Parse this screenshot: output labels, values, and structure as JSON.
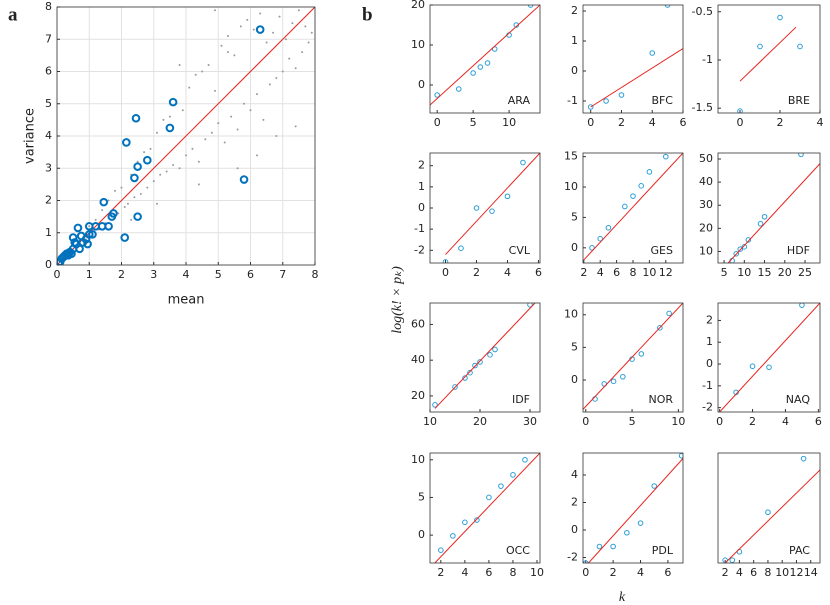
{
  "panel_b": {
    "label": "b",
    "x_label": "k",
    "y_label": "log(k! × pₖ)"
  },
  "chart_data": [
    {
      "type": "scatter",
      "panel_label": "a",
      "x_label": "mean",
      "y_label": "variance",
      "grid": true,
      "xlim": [
        0,
        8
      ],
      "ylim": [
        0,
        8
      ],
      "xticks": [
        0,
        1,
        2,
        3,
        4,
        5,
        6,
        7,
        8
      ],
      "yticks": [
        0,
        1,
        2,
        3,
        4,
        5,
        6,
        7,
        8
      ],
      "series": [
        {
          "mark": "dot",
          "color": "#9a9a9a",
          "x": [
            0.3,
            0.5,
            0.6,
            0.8,
            0.9,
            1.0,
            1.1,
            1.2,
            1.3,
            1.4,
            1.5,
            1.6,
            1.7,
            1.8,
            1.9,
            2.0,
            2.1,
            2.2,
            2.3,
            2.4,
            2.5,
            2.6,
            2.7,
            2.8,
            2.9,
            3.0,
            3.1,
            3.2,
            3.3,
            3.4,
            3.5,
            3.6,
            3.7,
            3.8,
            3.9,
            4.0,
            4.1,
            4.2,
            4.3,
            4.4,
            4.5,
            4.6,
            4.7,
            4.8,
            4.9,
            5.0,
            5.1,
            5.2,
            5.3,
            5.4,
            5.5,
            5.6,
            5.7,
            5.8,
            5.9,
            6.0,
            6.1,
            6.2,
            6.3,
            6.4,
            6.5,
            6.6,
            6.7,
            6.8,
            6.9,
            7.0,
            7.1,
            7.2,
            7.3,
            7.4,
            7.5,
            7.6,
            7.7,
            7.8,
            7.9,
            2.3,
            3.1,
            4.4,
            5.6,
            6.2,
            6.8,
            7.4,
            4.9,
            5.3,
            3.8
          ],
          "values": [
            0.4,
            0.6,
            0.5,
            1.0,
            0.8,
            1.2,
            0.9,
            1.4,
            1.1,
            1.7,
            1.3,
            2.0,
            1.5,
            2.3,
            1.6,
            2.4,
            1.8,
            1.9,
            2.8,
            2.1,
            3.2,
            2.2,
            3.5,
            2.4,
            3.6,
            2.6,
            4.1,
            2.8,
            4.5,
            2.9,
            4.6,
            3.1,
            5.0,
            3.0,
            4.8,
            3.4,
            5.5,
            3.6,
            5.9,
            3.2,
            6.0,
            3.9,
            6.2,
            4.1,
            5.4,
            4.4,
            6.8,
            3.8,
            7.1,
            4.6,
            6.5,
            4.2,
            7.4,
            5.0,
            7.6,
            4.8,
            7.3,
            5.3,
            7.8,
            4.5,
            6.9,
            5.6,
            7.2,
            5.8,
            7.7,
            6.0,
            7.0,
            6.4,
            7.5,
            6.1,
            7.9,
            6.6,
            7.4,
            6.9,
            7.2,
            1.4,
            1.9,
            2.5,
            3.0,
            3.4,
            4.0,
            4.3,
            7.9,
            6.6,
            6.2
          ]
        },
        {
          "mark": "line",
          "color": "#e8231e",
          "x": [
            0,
            8
          ],
          "values": [
            0,
            8
          ]
        },
        {
          "mark": "ring",
          "color": "#0072bd",
          "x": [
            0.05,
            0.1,
            0.15,
            0.2,
            0.25,
            0.3,
            0.35,
            0.4,
            0.45,
            0.5,
            0.5,
            0.55,
            0.6,
            0.65,
            0.7,
            0.75,
            0.8,
            0.9,
            0.95,
            1.0,
            1.0,
            1.1,
            1.2,
            1.4,
            1.45,
            1.6,
            1.7,
            1.75,
            2.1,
            2.15,
            2.4,
            2.45,
            2.5,
            2.5,
            2.8,
            3.5,
            3.6,
            5.8,
            6.3
          ],
          "values": [
            0.05,
            0.1,
            0.2,
            0.25,
            0.3,
            0.35,
            0.3,
            0.4,
            0.35,
            0.5,
            0.85,
            0.7,
            0.65,
            1.15,
            0.5,
            0.9,
            0.7,
            0.8,
            0.65,
            1.2,
            0.95,
            0.95,
            1.2,
            1.2,
            1.95,
            1.2,
            1.5,
            1.6,
            0.85,
            3.8,
            2.7,
            4.55,
            1.5,
            3.05,
            3.25,
            4.25,
            5.05,
            2.65,
            7.3
          ]
        }
      ]
    },
    {
      "type": "scatter",
      "title": "ARA",
      "xlim": [
        -1,
        14.3
      ],
      "ylim": [
        -7,
        20
      ],
      "xticks": [
        0,
        5,
        10
      ],
      "yticks": [
        0,
        10,
        20
      ],
      "series": [
        {
          "mark": "circle",
          "color": "#2a9fd8",
          "x": [
            0,
            3,
            5,
            6,
            7,
            8,
            10,
            11,
            13
          ],
          "values": [
            -2.5,
            -1,
            3,
            4.5,
            5.5,
            9,
            12.5,
            15,
            20
          ]
        },
        {
          "mark": "line",
          "color": "#e8231e",
          "x": [
            -1,
            14.3
          ],
          "values": [
            -5,
            20
          ]
        }
      ]
    },
    {
      "type": "scatter",
      "title": "BFC",
      "xlim": [
        -0.5,
        6
      ],
      "ylim": [
        -1.4,
        2.2
      ],
      "xticks": [
        0,
        2,
        4,
        6
      ],
      "yticks": [
        -1,
        0,
        1,
        2
      ],
      "series": [
        {
          "mark": "circle",
          "color": "#2a9fd8",
          "x": [
            0,
            1,
            2,
            4,
            5
          ],
          "values": [
            -1.2,
            -1,
            -0.8,
            0.6,
            2.2
          ]
        },
        {
          "mark": "line",
          "color": "#e8231e",
          "x": [
            0,
            6
          ],
          "values": [
            -1.2,
            0.75
          ]
        }
      ]
    },
    {
      "type": "scatter",
      "title": "BRE",
      "xlim": [
        -1.1,
        4
      ],
      "ylim": [
        -1.55,
        -0.43
      ],
      "xticks": [
        0,
        2,
        4
      ],
      "yticks": [
        -1.5,
        -1,
        -0.5
      ],
      "series": [
        {
          "mark": "circle",
          "color": "#2a9fd8",
          "x": [
            0,
            1,
            2,
            3
          ],
          "values": [
            -1.53,
            -0.86,
            -0.56,
            -0.86
          ]
        },
        {
          "mark": "line",
          "color": "#e8231e",
          "x": [
            0,
            2.8
          ],
          "values": [
            -1.22,
            -0.66
          ]
        }
      ]
    },
    {
      "type": "scatter",
      "title": "CVL",
      "xlim": [
        -1,
        6.1
      ],
      "ylim": [
        -2.6,
        2.6
      ],
      "xticks": [
        0,
        2,
        4,
        6
      ],
      "yticks": [
        -2,
        -1,
        0,
        1,
        2
      ],
      "series": [
        {
          "mark": "circle",
          "color": "#2a9fd8",
          "x": [
            0,
            1,
            2,
            3,
            4,
            5
          ],
          "values": [
            -2.55,
            -1.9,
            0,
            -0.15,
            0.55,
            2.15
          ]
        },
        {
          "mark": "line",
          "color": "#e8231e",
          "x": [
            0,
            6.1
          ],
          "values": [
            -2.2,
            2.6
          ]
        }
      ]
    },
    {
      "type": "scatter",
      "title": "GES",
      "xlim": [
        1.9,
        14.1
      ],
      "ylim": [
        -2.5,
        15.6
      ],
      "xticks": [
        2,
        4,
        6,
        8,
        10,
        12
      ],
      "yticks": [
        0,
        5,
        10,
        15
      ],
      "series": [
        {
          "mark": "circle",
          "color": "#2a9fd8",
          "x": [
            3,
            4,
            5,
            7,
            8,
            9,
            10,
            12
          ],
          "values": [
            0,
            1.5,
            3.3,
            6.8,
            8.5,
            10.2,
            12.5,
            15
          ]
        },
        {
          "mark": "line",
          "color": "#e8231e",
          "x": [
            2,
            14.1
          ],
          "values": [
            -2,
            15.6
          ]
        }
      ]
    },
    {
      "type": "scatter",
      "title": "HDF",
      "xlim": [
        3.5,
        28.7
      ],
      "ylim": [
        5,
        52.6
      ],
      "xticks": [
        5,
        10,
        15,
        20,
        25
      ],
      "yticks": [
        10,
        20,
        30,
        40,
        50
      ],
      "series": [
        {
          "mark": "circle",
          "color": "#2a9fd8",
          "x": [
            7,
            8,
            9,
            10,
            11,
            14,
            15,
            24
          ],
          "values": [
            6,
            9,
            11,
            12,
            15,
            22,
            25,
            52
          ]
        },
        {
          "mark": "line",
          "color": "#e8231e",
          "x": [
            6,
            28.7
          ],
          "values": [
            5,
            48
          ]
        }
      ]
    },
    {
      "type": "scatter",
      "title": "IDF",
      "xlim": [
        10,
        32
      ],
      "ylim": [
        11,
        72
      ],
      "xticks": [
        10,
        20,
        30
      ],
      "yticks": [
        20,
        40,
        60
      ],
      "series": [
        {
          "mark": "circle",
          "color": "#2a9fd8",
          "x": [
            11,
            15,
            17,
            18,
            19,
            20,
            22,
            23,
            30
          ],
          "values": [
            15,
            25,
            30,
            33,
            37,
            39,
            43,
            46,
            71
          ]
        },
        {
          "mark": "line",
          "color": "#e8231e",
          "x": [
            11,
            31
          ],
          "values": [
            13,
            72
          ]
        }
      ]
    },
    {
      "type": "scatter",
      "title": "NOR",
      "xlim": [
        -0.3,
        10.5
      ],
      "ylim": [
        -4.9,
        11.8
      ],
      "xticks": [
        0,
        5,
        10
      ],
      "yticks": [
        0,
        5,
        10
      ],
      "series": [
        {
          "mark": "circle",
          "color": "#2a9fd8",
          "x": [
            1,
            2,
            3,
            4,
            5,
            6,
            8,
            9
          ],
          "values": [
            -2.9,
            -0.6,
            -0.2,
            0.5,
            3.2,
            4,
            8,
            10.2
          ]
        },
        {
          "mark": "line",
          "color": "#e8231e",
          "x": [
            -0.3,
            10.5
          ],
          "values": [
            -4.5,
            11.8
          ]
        }
      ]
    },
    {
      "type": "scatter",
      "title": "NAQ",
      "xlim": [
        -0.1,
        6.1
      ],
      "ylim": [
        -2.2,
        2.8
      ],
      "xticks": [
        0,
        2,
        4,
        6
      ],
      "yticks": [
        -2,
        -1,
        0,
        1,
        2
      ],
      "series": [
        {
          "mark": "circle",
          "color": "#2a9fd8",
          "x": [
            1,
            2,
            3,
            5
          ],
          "values": [
            -1.3,
            -0.1,
            -0.15,
            2.7
          ]
        },
        {
          "mark": "line",
          "color": "#e8231e",
          "x": [
            0,
            6.1
          ],
          "values": [
            -2.2,
            2.8
          ]
        }
      ]
    },
    {
      "type": "scatter",
      "title": "OCC",
      "xlim": [
        1.1,
        10.25
      ],
      "ylim": [
        -3.7,
        10.9
      ],
      "xticks": [
        2,
        4,
        6,
        8,
        10
      ],
      "yticks": [
        0,
        5,
        10
      ],
      "series": [
        {
          "mark": "circle",
          "color": "#2a9fd8",
          "x": [
            2,
            3,
            4,
            5,
            6,
            7,
            8,
            9
          ],
          "values": [
            -2,
            -0.1,
            1.7,
            2,
            5,
            6.5,
            8,
            10
          ]
        },
        {
          "mark": "line",
          "color": "#e8231e",
          "x": [
            1.5,
            10.25
          ],
          "values": [
            -3.7,
            10.9
          ]
        }
      ]
    },
    {
      "type": "scatter",
      "title": "PDL",
      "xlim": [
        -0.2,
        7.1
      ],
      "ylim": [
        -2.4,
        5.6
      ],
      "xticks": [
        0,
        2,
        4,
        6
      ],
      "yticks": [
        -2,
        0,
        2,
        4
      ],
      "series": [
        {
          "mark": "circle",
          "color": "#2a9fd8",
          "x": [
            0,
            1,
            2,
            3,
            4,
            5,
            7
          ],
          "values": [
            -2.4,
            -1.2,
            -1.2,
            -0.2,
            0.5,
            3.2,
            5.4
          ]
        },
        {
          "mark": "line",
          "color": "#e8231e",
          "x": [
            0.2,
            7.1
          ],
          "values": [
            -2.4,
            5.2
          ]
        }
      ]
    },
    {
      "type": "scatter",
      "title": "PAC",
      "xlim": [
        1,
        15.3
      ],
      "ylim": [
        -0.5,
        19
      ],
      "xticks": [
        2,
        4,
        6,
        8,
        10,
        12,
        14
      ],
      "yticks": [],
      "series": [
        {
          "mark": "circle",
          "color": "#2a9fd8",
          "x": [
            2,
            3,
            4,
            8,
            13
          ],
          "values": [
            0,
            0,
            1.5,
            8.5,
            18
          ]
        },
        {
          "mark": "line",
          "color": "#e8231e",
          "x": [
            2,
            15.3
          ],
          "values": [
            -0.5,
            16
          ]
        }
      ]
    }
  ]
}
